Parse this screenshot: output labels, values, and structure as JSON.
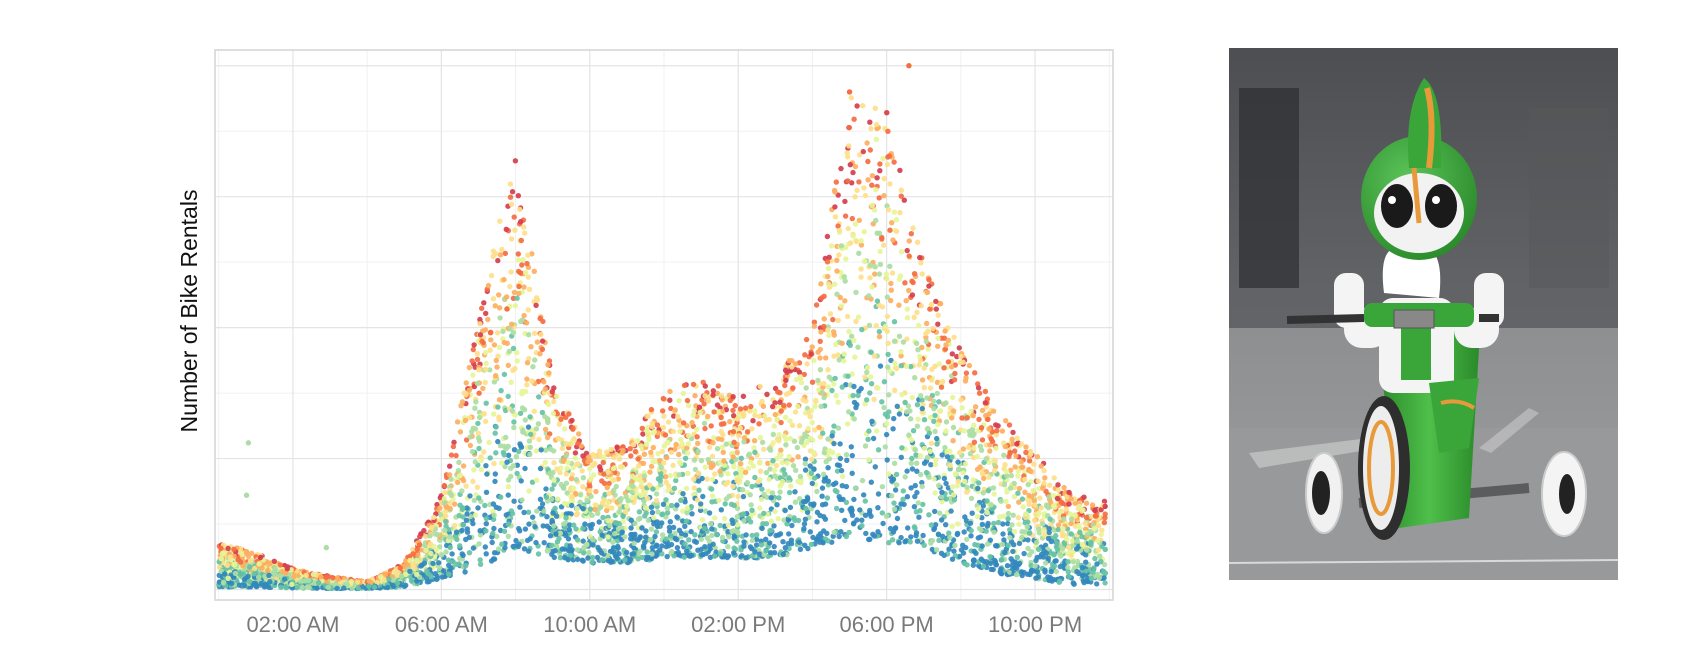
{
  "chart_data": {
    "type": "scatter",
    "title": "",
    "xlabel": "",
    "ylabel": "Number of Bike Rentals",
    "x_ticks": [
      {
        "hour": 2,
        "label": "02:00 AM"
      },
      {
        "hour": 6,
        "label": "06:00 AM"
      },
      {
        "hour": 10,
        "label": "10:00 AM"
      },
      {
        "hour": 14,
        "label": "02:00 PM"
      },
      {
        "hour": 18,
        "label": "06:00 PM"
      },
      {
        "hour": 22,
        "label": "10:00 PM"
      }
    ],
    "xlim": [
      -0.1,
      24.1
    ],
    "ylim": [
      -20,
      1030
    ],
    "y_ticks": [
      0,
      250,
      500,
      750,
      1000
    ],
    "y_tick_labels_visible": false,
    "grid": true,
    "legend": "none",
    "color_scale": "Spectral (blue = low, red = high)",
    "palette": [
      "#3288bd",
      "#66c2a5",
      "#abdda4",
      "#e6f598",
      "#fee08b",
      "#fdae61",
      "#f46d43",
      "#d53e4f"
    ],
    "hourly_profile": [
      {
        "hour": 0.0,
        "low": 5,
        "high": 90
      },
      {
        "hour": 1.0,
        "low": 5,
        "high": 70
      },
      {
        "hour": 2.0,
        "low": 3,
        "high": 40
      },
      {
        "hour": 3.0,
        "low": 2,
        "high": 25
      },
      {
        "hour": 4.0,
        "low": 2,
        "high": 15
      },
      {
        "hour": 5.0,
        "low": 5,
        "high": 50
      },
      {
        "hour": 6.0,
        "low": 20,
        "high": 180
      },
      {
        "hour": 7.0,
        "low": 40,
        "high": 520
      },
      {
        "hour": 8.0,
        "low": 80,
        "high": 840
      },
      {
        "hour": 9.0,
        "low": 60,
        "high": 400
      },
      {
        "hour": 10.0,
        "low": 50,
        "high": 260
      },
      {
        "hour": 11.0,
        "low": 50,
        "high": 280
      },
      {
        "hour": 12.0,
        "low": 60,
        "high": 380
      },
      {
        "hour": 13.0,
        "low": 60,
        "high": 400
      },
      {
        "hour": 14.0,
        "low": 60,
        "high": 380
      },
      {
        "hour": 15.0,
        "low": 60,
        "high": 400
      },
      {
        "hour": 16.0,
        "low": 80,
        "high": 500
      },
      {
        "hour": 17.0,
        "low": 100,
        "high": 950
      },
      {
        "hour": 18.0,
        "low": 90,
        "high": 920
      },
      {
        "hour": 19.0,
        "low": 80,
        "high": 620
      },
      {
        "hour": 20.0,
        "low": 50,
        "high": 460
      },
      {
        "hour": 21.0,
        "low": 30,
        "high": 340
      },
      {
        "hour": 22.0,
        "low": 20,
        "high": 260
      },
      {
        "hour": 23.0,
        "low": 10,
        "high": 180
      },
      {
        "hour": 23.9,
        "low": 10,
        "high": 170
      }
    ],
    "notable_points": [
      {
        "hour": 0.8,
        "value": 280
      },
      {
        "hour": 0.75,
        "value": 180
      },
      {
        "hour": 2.9,
        "value": 80
      },
      {
        "hour": 18.6,
        "value": 1000
      },
      {
        "hour": 17.0,
        "value": 950
      }
    ]
  },
  "photo": {
    "subject": "green-white-robot-riding-tricycle",
    "colors": {
      "robot_green": "#3aa63a",
      "robot_dark_green": "#2a7f2a",
      "accent_orange": "#e89a3a",
      "background": "#7d7f82"
    }
  }
}
